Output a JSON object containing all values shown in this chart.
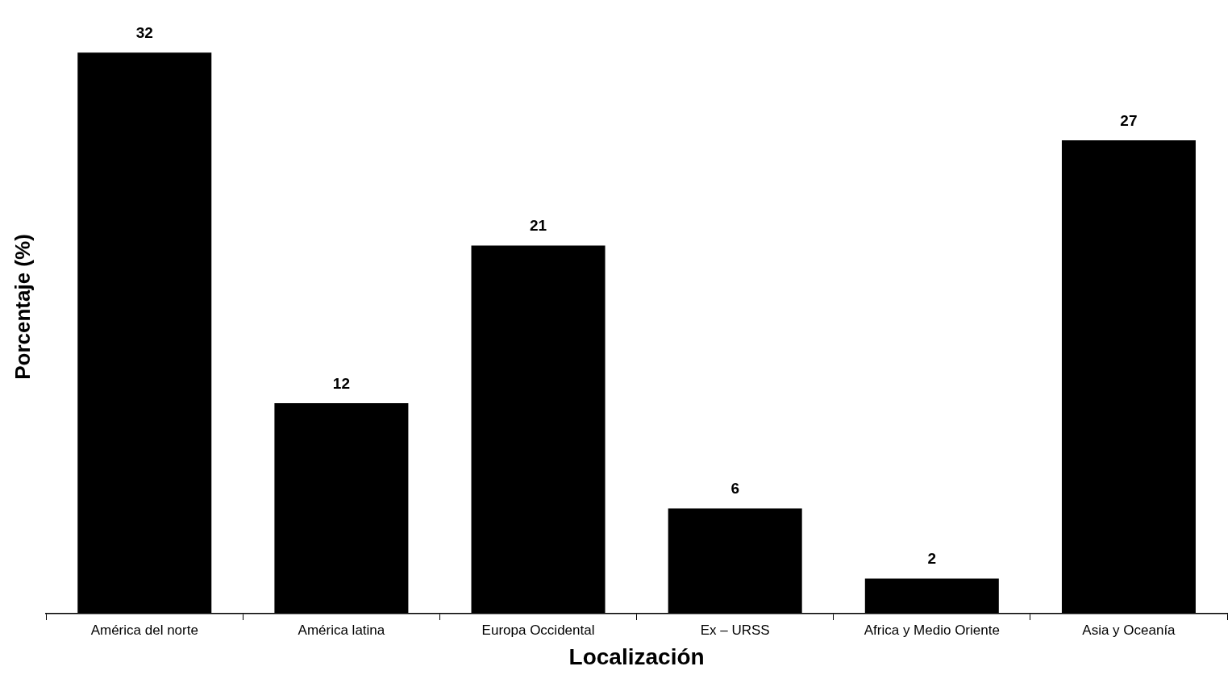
{
  "chart_data": {
    "type": "bar",
    "xlabel": "Localización",
    "ylabel": "Porcentaje (%)",
    "categories": [
      "América del norte",
      "América latina",
      "Europa Occidental",
      "Ex – URSS",
      "Africa y Medio Oriente",
      "Asia y Oceanía"
    ],
    "values": [
      32,
      12,
      21,
      6,
      2,
      27
    ],
    "color": "#000000",
    "data_labels": true,
    "tick_labels": "x"
  }
}
